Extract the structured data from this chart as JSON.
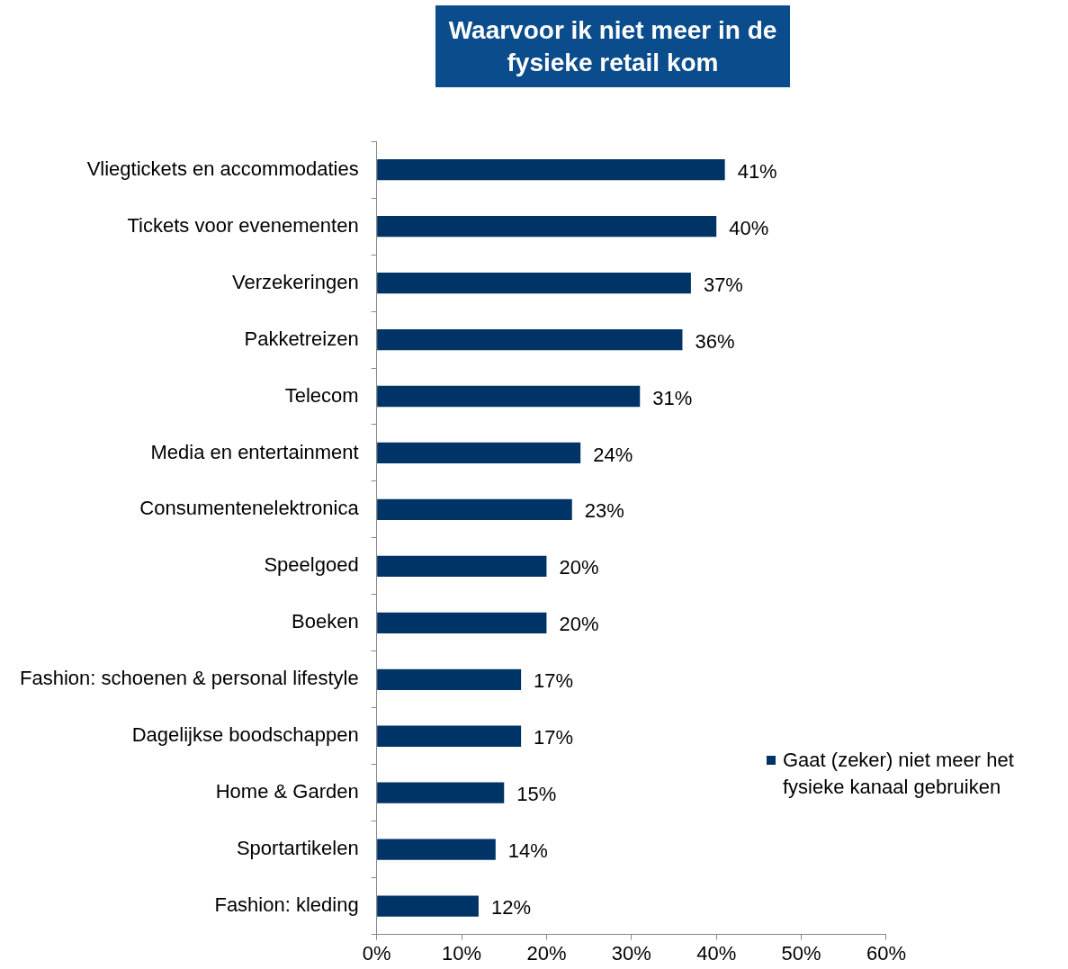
{
  "chart_data": {
    "type": "bar",
    "orientation": "horizontal",
    "title": "Waarvoor ik niet meer in de fysieke retail kom",
    "categories": [
      "Vliegtickets en accommodaties",
      "Tickets voor evenementen",
      "Verzekeringen",
      "Pakketreizen",
      "Telecom",
      "Media en entertainment",
      "Consumentenelektronica",
      "Speelgoed",
      "Boeken",
      "Fashion: schoenen & personal lifestyle",
      "Dagelijkse boodschappen",
      "Home & Garden",
      "Sportartikelen",
      "Fashion: kleding"
    ],
    "series": [
      {
        "name": "Gaat (zeker) niet meer het fysieke kanaal gebruiken",
        "color": "#003366",
        "values": [
          41,
          40,
          37,
          36,
          31,
          24,
          23,
          20,
          20,
          17,
          17,
          15,
          14,
          12
        ],
        "value_labels": [
          "41%",
          "40%",
          "37%",
          "36%",
          "31%",
          "24%",
          "23%",
          "20%",
          "20%",
          "17%",
          "17%",
          "15%",
          "14%",
          "12%"
        ]
      }
    ],
    "xlim": [
      0,
      60
    ],
    "xticks": [
      {
        "value": 0,
        "label": "0%"
      },
      {
        "value": 10,
        "label": "10%"
      },
      {
        "value": 20,
        "label": "20%"
      },
      {
        "value": 30,
        "label": "30%"
      },
      {
        "value": 40,
        "label": "40%"
      },
      {
        "value": 50,
        "label": "50%"
      },
      {
        "value": 60,
        "label": "60%"
      }
    ],
    "grid": false,
    "legend": "right",
    "marker": "square"
  }
}
